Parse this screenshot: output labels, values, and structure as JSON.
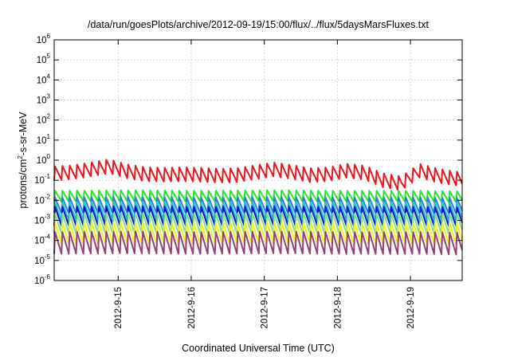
{
  "chart_data": {
    "type": "line",
    "title": "/data/run/goesPlots/archive/2012-09-19/15:00/flux/../flux/5daysMarsFluxes.txt",
    "xlabel": "Coordinated Universal Time (UTC)",
    "ylabel": {
      "pre": "protons/cm",
      "sup": "2",
      "post": "-s-sr-MeV"
    },
    "y_scale": "log",
    "ylim": [
      1e-06,
      1000000.0
    ],
    "y_ticks": [
      {
        "value": 1e-06,
        "base": "10",
        "exp": "-6"
      },
      {
        "value": 1e-05,
        "base": "10",
        "exp": "-5"
      },
      {
        "value": 0.0001,
        "base": "10",
        "exp": "-4"
      },
      {
        "value": 0.001,
        "base": "10",
        "exp": "-3"
      },
      {
        "value": 0.01,
        "base": "10",
        "exp": "-2"
      },
      {
        "value": 0.1,
        "base": "10",
        "exp": "-1"
      },
      {
        "value": 1.0,
        "base": "10",
        "exp": "0"
      },
      {
        "value": 10.0,
        "base": "10",
        "exp": "1"
      },
      {
        "value": 100.0,
        "base": "10",
        "exp": "2"
      },
      {
        "value": 1000.0,
        "base": "10",
        "exp": "3"
      },
      {
        "value": 10000.0,
        "base": "10",
        "exp": "4"
      },
      {
        "value": 100000.0,
        "base": "10",
        "exp": "5"
      },
      {
        "value": 1000000.0,
        "base": "10",
        "exp": "6"
      }
    ],
    "x_ticks": [
      "2012-9-15",
      "2012-9-16",
      "2012-9-17",
      "2012-9-18",
      "2012-9-19"
    ],
    "xlim": [
      "2012-09-14 03:00",
      "2012-09-19 17:00"
    ],
    "grid": true,
    "legend": "none",
    "period_hours": 2.4,
    "series": [
      {
        "color": "#e8151b",
        "x": [
          "2012-09-14 03:00",
          "2012-09-14 09:00",
          "2012-09-14 15:00",
          "2012-09-14 21:00",
          "2012-09-15 03:00",
          "2012-09-15 09:00",
          "2012-09-15 15:00",
          "2012-09-15 21:00",
          "2012-09-16 03:00",
          "2012-09-16 09:00",
          "2012-09-16 15:00",
          "2012-09-16 21:00",
          "2012-09-17 03:00",
          "2012-09-17 09:00",
          "2012-09-17 15:00",
          "2012-09-17 21:00",
          "2012-09-18 03:00",
          "2012-09-18 09:00",
          "2012-09-18 15:00",
          "2012-09-18 21:00",
          "2012-09-19 03:00",
          "2012-09-19 09:00",
          "2012-09-19 17:00"
        ],
        "mean": [
          0.22,
          0.25,
          0.35,
          0.5,
          0.28,
          0.2,
          0.19,
          0.2,
          0.19,
          0.17,
          0.18,
          0.25,
          0.35,
          0.26,
          0.18,
          0.2,
          0.3,
          0.24,
          0.1,
          0.07,
          0.3,
          0.17,
          0.11
        ],
        "amplitude": 0.7
      },
      {
        "color": "#1ee82a",
        "x": [
          "2012-09-14 03:00",
          "2012-09-15 03:00",
          "2012-09-16 03:00",
          "2012-09-17 03:00",
          "2012-09-18 03:00",
          "2012-09-19 03:00",
          "2012-09-19 17:00"
        ],
        "mean": [
          0.016,
          0.017,
          0.016,
          0.017,
          0.016,
          0.016,
          0.015
        ],
        "amplitude": 0.55
      },
      {
        "color": "#2a7ae6",
        "x": [
          "2012-09-14 03:00",
          "2012-09-15 03:00",
          "2012-09-16 03:00",
          "2012-09-17 03:00",
          "2012-09-18 03:00",
          "2012-09-19 03:00",
          "2012-09-19 17:00"
        ],
        "mean": [
          0.0055,
          0.0058,
          0.0055,
          0.0058,
          0.0055,
          0.0055,
          0.0052
        ],
        "amplitude": 0.8
      },
      {
        "color": "#23c8c8",
        "x": [
          "2012-09-14 03:00",
          "2012-09-15 03:00",
          "2012-09-16 03:00",
          "2012-09-17 03:00",
          "2012-09-18 03:00",
          "2012-09-19 03:00",
          "2012-09-19 17:00"
        ],
        "mean": [
          0.0028,
          0.003,
          0.0028,
          0.003,
          0.0028,
          0.0028,
          0.0027
        ],
        "amplitude": 0.9
      },
      {
        "color": "#0a14c8",
        "x": [
          "2012-09-14 03:00",
          "2012-09-15 03:00",
          "2012-09-16 03:00",
          "2012-09-17 03:00",
          "2012-09-18 03:00",
          "2012-09-19 03:00",
          "2012-09-19 17:00"
        ],
        "mean": [
          0.0016,
          0.0017,
          0.0016,
          0.0017,
          0.0016,
          0.0016,
          0.0015
        ],
        "amplitude": 0.95
      },
      {
        "color": "#7ce08a",
        "x": [
          "2012-09-14 03:00",
          "2012-09-15 03:00",
          "2012-09-16 03:00",
          "2012-09-17 03:00",
          "2012-09-18 03:00",
          "2012-09-19 03:00",
          "2012-09-19 17:00"
        ],
        "mean": [
          0.0007,
          0.00075,
          0.0007,
          0.00075,
          0.0007,
          0.0007,
          0.00068
        ],
        "amplitude": 1.0
      },
      {
        "color": "#f2f21c",
        "x": [
          "2012-09-14 03:00",
          "2012-09-15 03:00",
          "2012-09-16 03:00",
          "2012-09-17 03:00",
          "2012-09-18 03:00",
          "2012-09-19 03:00",
          "2012-09-19 17:00"
        ],
        "mean": [
          0.00022,
          0.00024,
          0.00022,
          0.00024,
          0.00022,
          0.00022,
          0.00021
        ],
        "amplitude": 1.05
      },
      {
        "color": "#94407a",
        "x": [
          "2012-09-14 03:00",
          "2012-09-15 03:00",
          "2012-09-16 03:00",
          "2012-09-17 03:00",
          "2012-09-18 03:00",
          "2012-09-19 03:00",
          "2012-09-19 17:00"
        ],
        "mean": [
          7.5e-05,
          8e-05,
          7.5e-05,
          8e-05,
          7.5e-05,
          7.5e-05,
          7e-05
        ],
        "amplitude": 1.1
      }
    ]
  }
}
